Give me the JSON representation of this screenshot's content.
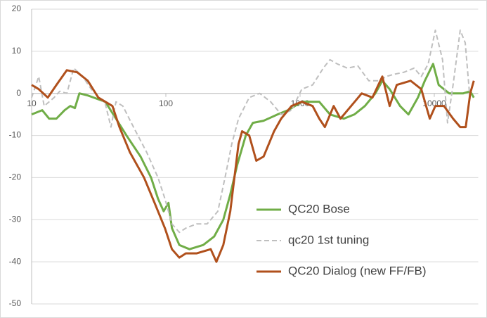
{
  "chart_data": {
    "type": "line",
    "log_x": true,
    "grid": true,
    "legend": "lower right",
    "xlim": [
      10,
      20000
    ],
    "xticks": [
      10,
      100,
      1000,
      10000
    ],
    "ylim": [
      -50,
      20
    ],
    "yticks": [
      -50,
      -40,
      -30,
      -20,
      -10,
      0,
      10,
      20
    ],
    "series": [
      {
        "name": "QC20 Bose",
        "color": "#70ad47",
        "dash": false,
        "x": [
          10,
          12,
          13.5,
          15.3,
          17.6,
          19.4,
          21,
          22.7,
          26.2,
          35.4,
          42.5,
          50.9,
          64.8,
          77.6,
          87.4,
          96.3,
          104.6,
          111,
          126,
          150,
          190,
          229,
          268,
          302,
          340,
          394,
          445,
          535,
          680,
          812,
          1030,
          1390,
          1670,
          2120,
          2540,
          3040,
          3640,
          4100,
          4650,
          5560,
          6420,
          7550,
          8500,
          9800,
          10780,
          12900,
          16450,
          18520,
          19700
        ],
        "values": [
          -5,
          -4,
          -6,
          -6,
          -4,
          -3,
          -3.5,
          0,
          -0.5,
          -2,
          -6,
          -10,
          -15,
          -20,
          -25,
          -28,
          -26,
          -32,
          -36,
          -37,
          -36,
          -34,
          -30,
          -24,
          -17,
          -10,
          -7,
          -6.5,
          -5,
          -4,
          -2,
          -2,
          -5,
          -6,
          -5,
          -3,
          0,
          3,
          1,
          -3,
          -5,
          -1,
          3,
          7,
          2,
          0,
          0,
          0.5,
          -1
        ]
      },
      {
        "name": "qc20 1st tuning",
        "color": "#bfbfbf",
        "dash": true,
        "x": [
          10,
          11.3,
          12.4,
          14.7,
          16.2,
          18.3,
          20.6,
          24,
          27.8,
          35.4,
          39,
          42.5,
          47.8,
          57.4,
          72,
          87.4,
          98.4,
          111,
          126,
          141,
          169,
          203,
          244,
          276,
          310,
          348,
          418,
          500,
          604,
          723,
          864,
          1030,
          1240,
          1490,
          1670,
          1890,
          2250,
          2700,
          3250,
          3880,
          4380,
          4950,
          5920,
          7080,
          8000,
          9010,
          10180,
          11520,
          12550,
          13800,
          15600,
          17000,
          18520
        ],
        "values": [
          -1,
          4,
          -3,
          -1,
          0.5,
          0,
          6,
          4,
          1,
          -2.5,
          -8,
          -2,
          -3,
          -8,
          -14,
          -20,
          -25,
          -31,
          -33,
          -32,
          -31,
          -31,
          -28,
          -20,
          -12,
          -6,
          -1,
          0,
          -2,
          -5,
          -4,
          1,
          2,
          6,
          8,
          7,
          6,
          6.5,
          3,
          3,
          4,
          4.5,
          5,
          6,
          4,
          7,
          15,
          8,
          -7,
          2,
          15,
          12,
          -2
        ]
      },
      {
        "name": "QC20 Dialog (new FF/FB)",
        "color": "#b0501c",
        "dash": false,
        "x": [
          10,
          11.3,
          13.2,
          15.3,
          18.3,
          21.9,
          26.2,
          31.4,
          40,
          45.1,
          54,
          68.8,
          82.4,
          98.4,
          111,
          126,
          141,
          169,
          216,
          238,
          268,
          302,
          348,
          370,
          418,
          472,
          535,
          640,
          723,
          864,
          1030,
          1240,
          1390,
          1530,
          1780,
          2000,
          2400,
          2880,
          3460,
          4100,
          4650,
          5250,
          6660,
          8000,
          9250,
          10180,
          11800,
          13800,
          15600,
          17150,
          18520,
          19700
        ],
        "values": [
          2,
          1,
          -1,
          2,
          5.5,
          5,
          3,
          -1,
          -3,
          -8,
          -14,
          -20,
          -26,
          -32,
          -37,
          -39,
          -38,
          -38,
          -37,
          -40,
          -36,
          -28,
          -12,
          -9,
          -10,
          -16,
          -15,
          -9,
          -6,
          -3,
          -2,
          -3,
          -6,
          -8,
          -3,
          -6,
          -3,
          0,
          -1,
          4,
          -3,
          2,
          3,
          1,
          -6,
          -3,
          -3,
          -6,
          -8,
          -8,
          0,
          3
        ]
      }
    ]
  }
}
